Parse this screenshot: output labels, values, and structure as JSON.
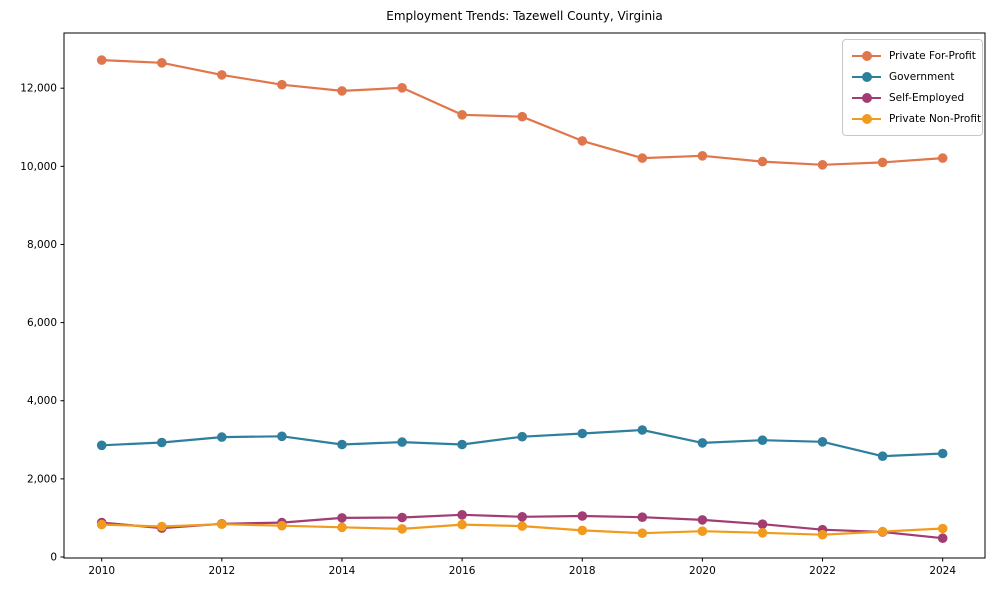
{
  "chart_data": {
    "type": "line",
    "title": "Employment Trends: Tazewell County, Virginia",
    "xlabel": "",
    "ylabel": "",
    "x": [
      2010,
      2011,
      2012,
      2013,
      2014,
      2015,
      2016,
      2017,
      2018,
      2019,
      2020,
      2021,
      2022,
      2023,
      2024
    ],
    "series": [
      {
        "name": "Private For-Profit",
        "color": "#e0764c",
        "values": [
          12720,
          12650,
          12340,
          12090,
          11930,
          12010,
          11320,
          11270,
          10650,
          10210,
          10270,
          10120,
          10040,
          10100,
          10210
        ]
      },
      {
        "name": "Government",
        "color": "#2e7f9e",
        "values": [
          2860,
          2930,
          3070,
          3090,
          2880,
          2940,
          2880,
          3080,
          3160,
          3250,
          2920,
          2990,
          2950,
          2580,
          2650
        ]
      },
      {
        "name": "Self-Employed",
        "color": "#a13d73",
        "values": [
          880,
          740,
          850,
          880,
          1000,
          1010,
          1080,
          1030,
          1050,
          1020,
          950,
          840,
          700,
          640,
          480
        ]
      },
      {
        "name": "Private Non-Profit",
        "color": "#f19b1e",
        "values": [
          830,
          780,
          840,
          800,
          760,
          720,
          830,
          790,
          680,
          610,
          660,
          620,
          570,
          650,
          730
        ]
      }
    ],
    "xticks": {
      "values": [
        2010,
        2012,
        2014,
        2016,
        2018,
        2020,
        2022,
        2024
      ],
      "labels": [
        "2010",
        "2012",
        "2014",
        "2016",
        "2018",
        "2020",
        "2022",
        "2024"
      ]
    },
    "yticks": {
      "values": [
        0,
        2000,
        4000,
        6000,
        8000,
        10000,
        12000
      ],
      "labels": [
        "0",
        "2,000",
        "4,000",
        "6,000",
        "8,000",
        "10,000",
        "12,000"
      ]
    },
    "ylim": [
      0,
      13400
    ],
    "grid": false,
    "legend_position": "upper right",
    "axis_color": "#000000"
  }
}
